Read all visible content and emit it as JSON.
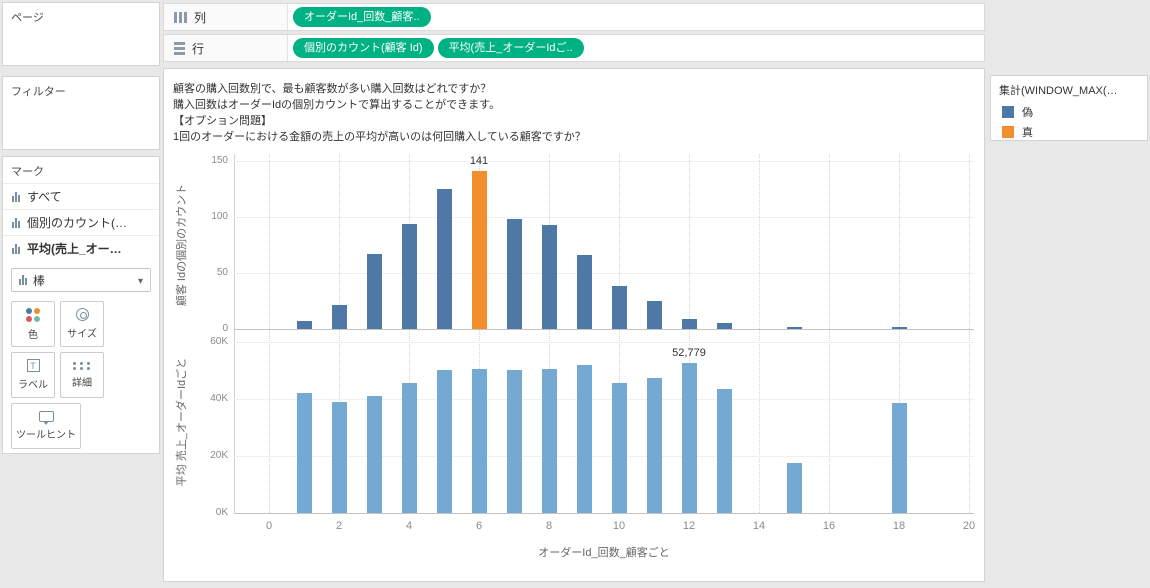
{
  "colors": {
    "pill": "#00b283",
    "bar_dark": "#4e79a7",
    "bar_light": "#74a9d4",
    "highlight": "#f28e2b"
  },
  "sidebar": {
    "pages_title": "ページ",
    "filters_title": "フィルター",
    "marks_title": "マーク",
    "marks_items": [
      "すべて",
      "個別のカウント(…",
      "平均(売上_オー…"
    ],
    "mark_type": "棒",
    "buttons": {
      "color": "色",
      "size": "サイズ",
      "label": "ラベル",
      "detail": "詳細",
      "tooltip": "ツールヒント"
    }
  },
  "shelves": {
    "columns_label": "列",
    "rows_label": "行",
    "columns_pills": [
      "オーダーId_回数_顧客.."
    ],
    "rows_pills": [
      "個別のカウント(顧客 Id)",
      "平均(売上_オーダーIdご.."
    ]
  },
  "question": {
    "line1": "顧客の購入回数別で、最も顧客数が多い購入回数はどれですか？",
    "line2": "購入回数はオーダーIdの個別カウントで算出することができます。",
    "line3": "【オプション問題】",
    "line4": "1回のオーダーにおける金額の売上の平均が高いのは何回購入している顧客ですか？"
  },
  "x_axis": {
    "min": 0,
    "max": 20,
    "ticks": [
      0,
      2,
      4,
      6,
      8,
      10,
      12,
      14,
      16,
      18,
      20
    ],
    "title": "オーダーId_回数_顧客ごと"
  },
  "chart_data": [
    {
      "type": "bar",
      "title": "顧客 Idの個別のカウント",
      "x": [
        1,
        2,
        3,
        4,
        5,
        6,
        7,
        8,
        9,
        10,
        11,
        12,
        13,
        15,
        18
      ],
      "values": [
        7,
        21,
        67,
        94,
        125,
        141,
        98,
        93,
        66,
        38,
        25,
        9,
        5,
        1,
        1
      ],
      "highlight_x": 6,
      "highlight_label": "141",
      "ylim": [
        0,
        150
      ],
      "yticks": [
        0,
        50,
        100,
        150
      ],
      "ytick_labels": [
        "0",
        "50",
        "100",
        "150"
      ]
    },
    {
      "type": "bar",
      "title": "平均 売上_オーダーIdごと",
      "x": [
        1,
        2,
        3,
        4,
        5,
        6,
        7,
        8,
        9,
        10,
        11,
        12,
        13,
        15,
        18
      ],
      "values": [
        42000,
        39000,
        41000,
        45500,
        50000,
        50500,
        50000,
        50500,
        52000,
        45500,
        47500,
        52779,
        43500,
        17500,
        38500
      ],
      "label_x": 12,
      "label_text": "52,779",
      "ylim": [
        0,
        60000
      ],
      "yticks": [
        0,
        20000,
        40000,
        60000
      ],
      "ytick_labels": [
        "0K",
        "20K",
        "40K",
        "60K"
      ]
    }
  ],
  "legend": {
    "title": "集計(WINDOW_MAX(…",
    "items": [
      {
        "label": "偽",
        "color": "#4e79a7"
      },
      {
        "label": "真",
        "color": "#f28e2b"
      }
    ]
  }
}
